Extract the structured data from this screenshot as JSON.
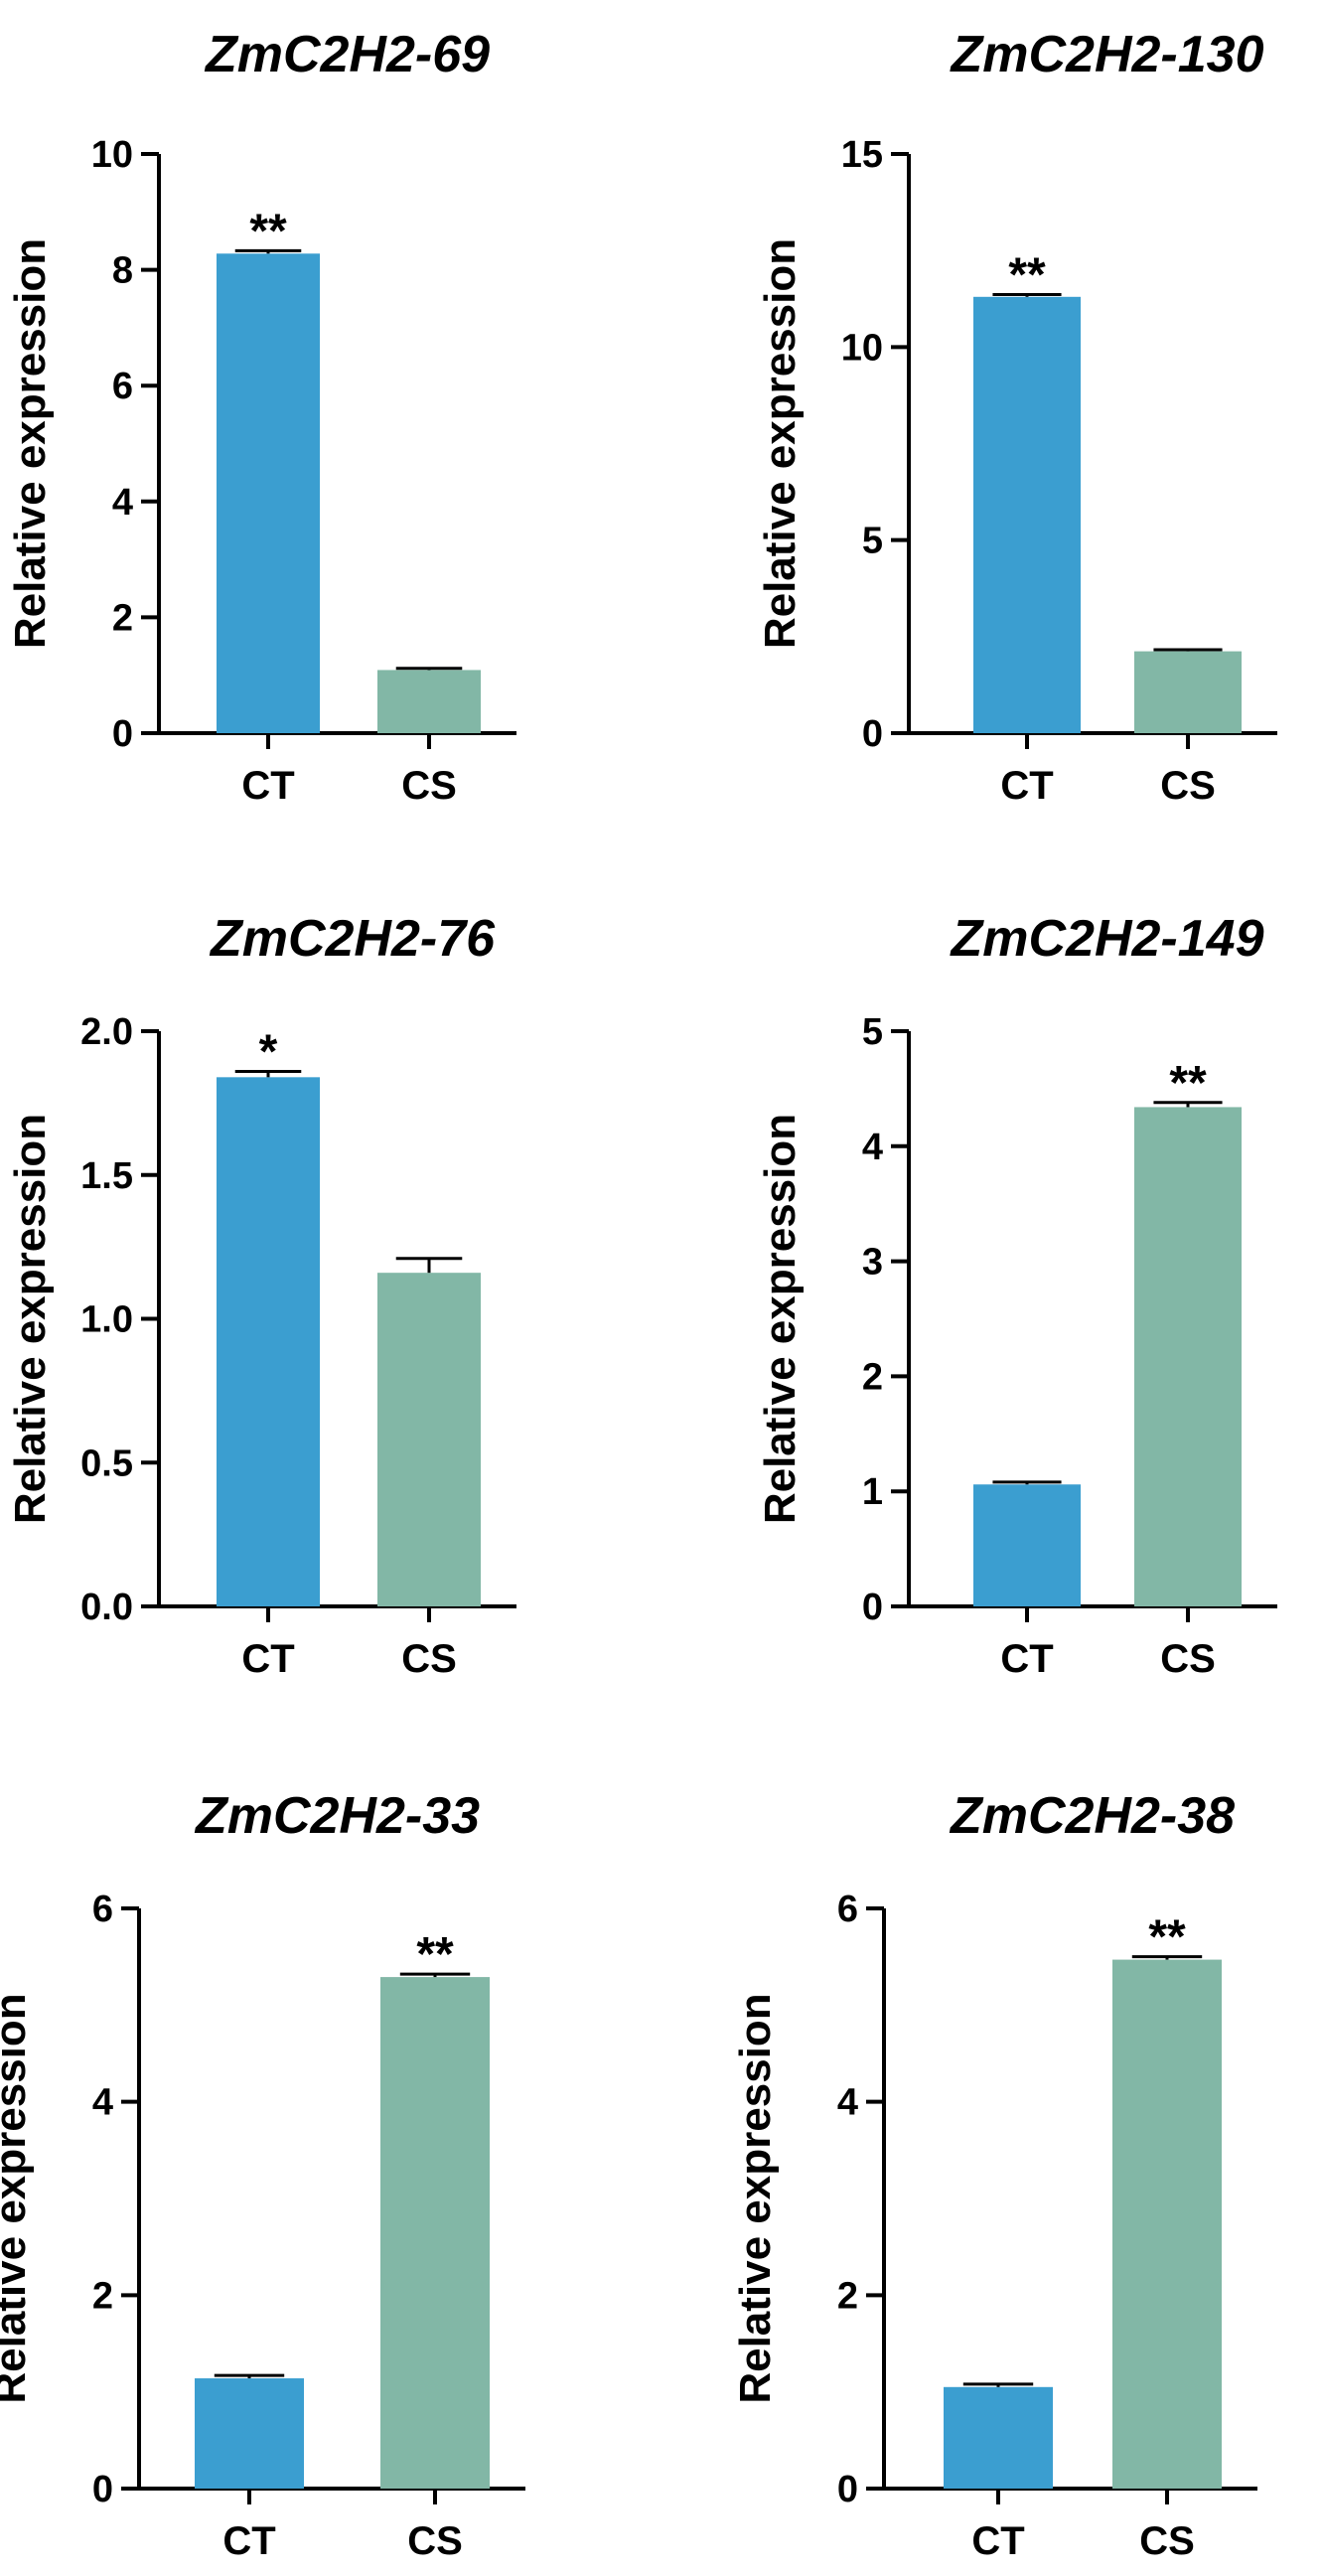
{
  "chart_data": [
    {
      "type": "bar",
      "title": "ZmC2H2-69",
      "ylabel": "Relative expression",
      "xlabel": "",
      "categories": [
        "CT",
        "CS"
      ],
      "values": [
        8.28,
        1.09
      ],
      "errors": [
        0.05,
        0.03
      ],
      "significance": [
        "**",
        ""
      ],
      "ylim": [
        0,
        10
      ],
      "yticks": [
        "0",
        "2",
        "4",
        "6",
        "8",
        "10"
      ],
      "colors": [
        "#3b9ed0",
        "#82b7a6"
      ]
    },
    {
      "type": "bar",
      "title": "ZmC2H2-130",
      "ylabel": "Relative expression",
      "xlabel": "",
      "categories": [
        "CT",
        "CS"
      ],
      "values": [
        11.3,
        2.12
      ],
      "errors": [
        0.06,
        0.04
      ],
      "significance": [
        "**",
        ""
      ],
      "ylim": [
        0,
        15
      ],
      "yticks": [
        "0",
        "5",
        "10",
        "15"
      ],
      "colors": [
        "#3b9ed0",
        "#82b7a6"
      ]
    },
    {
      "type": "bar",
      "title": "ZmC2H2-76",
      "ylabel": "Relative expression",
      "xlabel": "",
      "categories": [
        "CT",
        "CS"
      ],
      "values": [
        1.84,
        1.16
      ],
      "errors": [
        0.02,
        0.05
      ],
      "significance": [
        "*",
        ""
      ],
      "ylim": [
        0,
        2.0
      ],
      "yticks": [
        "0.0",
        "0.5",
        "1.0",
        "1.5",
        "2.0"
      ],
      "colors": [
        "#3b9ed0",
        "#82b7a6"
      ]
    },
    {
      "type": "bar",
      "title": "ZmC2H2-149",
      "ylabel": "Relative expression",
      "xlabel": "",
      "categories": [
        "CT",
        "CS"
      ],
      "values": [
        1.06,
        4.34
      ],
      "errors": [
        0.02,
        0.04
      ],
      "significance": [
        "",
        "**"
      ],
      "ylim": [
        0,
        5
      ],
      "yticks": [
        "0",
        "1",
        "2",
        "3",
        "4",
        "5"
      ],
      "colors": [
        "#3b9ed0",
        "#82b7a6"
      ]
    },
    {
      "type": "bar",
      "title": "ZmC2H2-33",
      "ylabel": "Relative expression",
      "xlabel": "",
      "categories": [
        "CT",
        "CS"
      ],
      "values": [
        1.14,
        5.29
      ],
      "errors": [
        0.03,
        0.03
      ],
      "significance": [
        "",
        "**"
      ],
      "ylim": [
        0,
        6
      ],
      "yticks": [
        "0",
        "2",
        "4",
        "6"
      ],
      "colors": [
        "#3b9ed0",
        "#82b7a6"
      ]
    },
    {
      "type": "bar",
      "title": "ZmC2H2-38",
      "ylabel": "Relative expression",
      "xlabel": "",
      "categories": [
        "CT",
        "CS"
      ],
      "values": [
        1.05,
        5.47
      ],
      "errors": [
        0.03,
        0.03
      ],
      "significance": [
        "",
        "**"
      ],
      "ylim": [
        0,
        6
      ],
      "yticks": [
        "0",
        "2",
        "4",
        "6"
      ],
      "colors": [
        "#3b9ed0",
        "#82b7a6"
      ]
    }
  ]
}
